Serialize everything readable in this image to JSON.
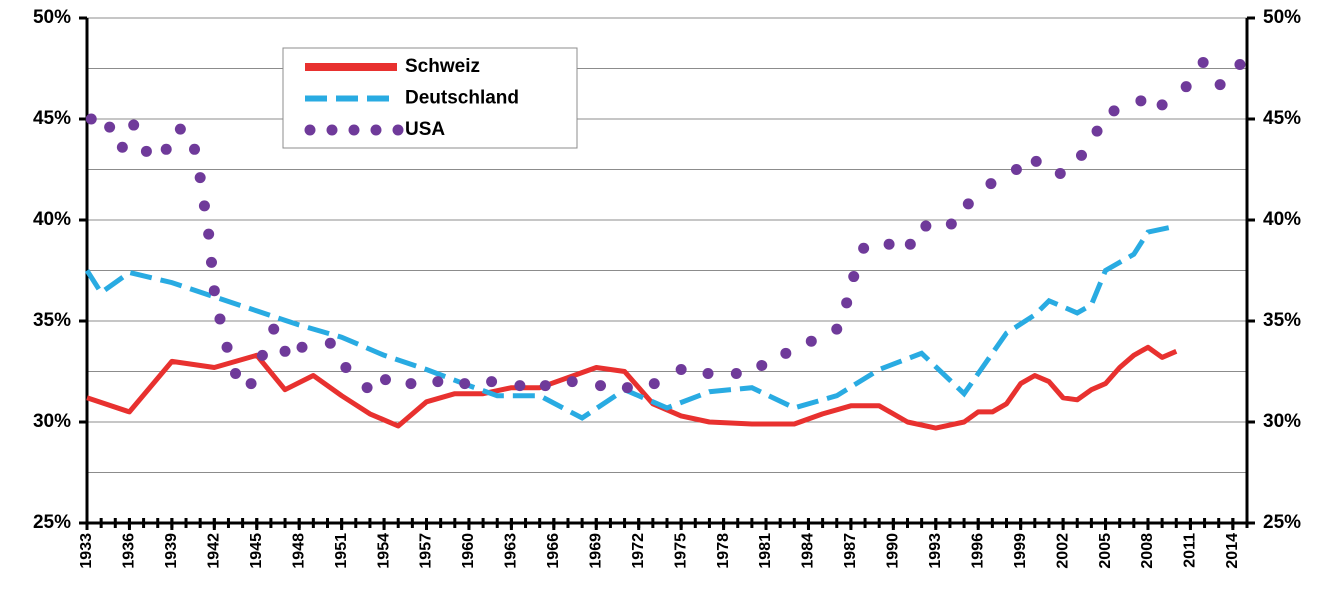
{
  "chart_data": {
    "type": "line",
    "xlim": [
      1933,
      2015
    ],
    "xticks": [
      1933,
      1936,
      1939,
      1942,
      1945,
      1948,
      1951,
      1954,
      1957,
      1960,
      1963,
      1966,
      1969,
      1972,
      1975,
      1978,
      1981,
      1984,
      1987,
      1990,
      1993,
      1996,
      1999,
      2002,
      2005,
      2008,
      2011,
      2014
    ],
    "ylim": [
      25,
      50
    ],
    "yticks": [
      {
        "value": 25,
        "label": "25%"
      },
      {
        "value": 30,
        "label": "30%"
      },
      {
        "value": 35,
        "label": "35%"
      },
      {
        "value": 40,
        "label": "40%"
      },
      {
        "value": 45,
        "label": "45%"
      },
      {
        "value": 50,
        "label": "50%"
      }
    ],
    "y2lim": [
      25,
      50
    ],
    "y2ticks": [
      {
        "value": 25,
        "label": "25%"
      },
      {
        "value": 30,
        "label": "30%"
      },
      {
        "value": 35,
        "label": "35%"
      },
      {
        "value": 40,
        "label": "40%"
      },
      {
        "value": 45,
        "label": "45%"
      },
      {
        "value": 50,
        "label": "50%"
      }
    ],
    "ygrid_minor": [
      27.5,
      32.5,
      37.5,
      42.5,
      47.5
    ],
    "grid": true,
    "legend": "top-left",
    "series": [
      {
        "name": "Schweiz",
        "color": "#e8312f",
        "style": "solid",
        "x": [
          1933,
          1936,
          1939,
          1942,
          1945,
          1947,
          1949,
          1951,
          1953,
          1955,
          1957,
          1959,
          1961,
          1963,
          1965,
          1967,
          1969,
          1971,
          1973,
          1975,
          1977,
          1980,
          1983,
          1985,
          1987,
          1989,
          1991,
          1993,
          1995,
          1996,
          1997,
          1998,
          1999,
          2000,
          2001,
          2002,
          2003,
          2004,
          2005,
          2006,
          2007,
          2008,
          2009,
          2010
        ],
        "values": [
          31.2,
          30.5,
          33.0,
          32.7,
          33.3,
          31.6,
          32.3,
          31.3,
          30.4,
          29.8,
          31.0,
          31.4,
          31.4,
          31.7,
          31.7,
          32.2,
          32.7,
          32.5,
          30.9,
          30.3,
          30.0,
          29.9,
          29.9,
          30.4,
          30.8,
          30.8,
          30.0,
          29.7,
          30.0,
          30.5,
          30.5,
          30.9,
          31.9,
          32.3,
          32.0,
          31.2,
          31.1,
          31.6,
          31.9,
          32.7,
          33.3,
          33.7,
          33.2,
          33.5
        ]
      },
      {
        "name": "Deutschland",
        "color": "#29abe2",
        "style": "dashed",
        "x": [
          1933,
          1934,
          1936,
          1939,
          1942,
          1945,
          1948,
          1951,
          1954,
          1957,
          1960,
          1962,
          1965,
          1968,
          1971,
          1974,
          1977,
          1980,
          1983,
          1986,
          1989,
          1992,
          1995,
          1998,
          2000,
          2001,
          2003,
          2004,
          2005,
          2007,
          2008,
          2010
        ],
        "values": [
          37.5,
          36.4,
          37.4,
          36.9,
          36.2,
          35.5,
          34.8,
          34.2,
          33.3,
          32.6,
          31.8,
          31.3,
          31.3,
          30.2,
          31.6,
          30.7,
          31.5,
          31.7,
          30.7,
          31.3,
          32.6,
          33.4,
          31.4,
          34.4,
          35.3,
          36.0,
          35.4,
          35.8,
          37.5,
          38.3,
          39.4,
          39.7
        ]
      },
      {
        "name": "USA",
        "color": "#6f3a9a",
        "style": "dotted",
        "x": [
          1933.3,
          1934.6,
          1935.5,
          1936.3,
          1937.2,
          1938.6,
          1939.6,
          1940.6,
          1941.0,
          1941.3,
          1941.6,
          1941.8,
          1942.0,
          1942.4,
          1942.9,
          1943.5,
          1944.6,
          1945.4,
          1946.2,
          1947.0,
          1948.2,
          1950.2,
          1951.3,
          1952.8,
          1954.1,
          1955.9,
          1957.8,
          1959.7,
          1961.6,
          1963.6,
          1965.4,
          1967.3,
          1969.3,
          1971.2,
          1973.1,
          1975.0,
          1976.9,
          1978.9,
          1980.7,
          1982.4,
          1984.2,
          1986.0,
          1986.7,
          1987.2,
          1987.9,
          1989.7,
          1991.2,
          1992.3,
          1994.1,
          1995.3,
          1996.9,
          1998.7,
          2000.1,
          2001.8,
          2003.3,
          2004.4,
          2005.6,
          2007.5,
          2009.0,
          2010.7,
          2011.9,
          2013.1,
          2014.5
        ],
        "values": [
          45.0,
          44.6,
          43.6,
          44.7,
          43.4,
          43.5,
          44.5,
          43.5,
          42.1,
          40.7,
          39.3,
          37.9,
          36.5,
          35.1,
          33.7,
          32.4,
          31.9,
          33.3,
          34.6,
          33.5,
          33.7,
          33.9,
          32.7,
          31.7,
          32.1,
          31.9,
          32.0,
          31.9,
          32.0,
          31.8,
          31.8,
          32.0,
          31.8,
          31.7,
          31.9,
          32.6,
          32.4,
          32.4,
          32.8,
          33.4,
          34.0,
          34.6,
          35.9,
          37.2,
          38.6,
          38.8,
          38.8,
          39.7,
          39.8,
          40.8,
          41.8,
          42.5,
          42.9,
          42.3,
          43.2,
          44.4,
          45.4,
          45.9,
          45.7,
          46.6,
          47.8,
          46.7,
          47.7
        ]
      }
    ]
  }
}
